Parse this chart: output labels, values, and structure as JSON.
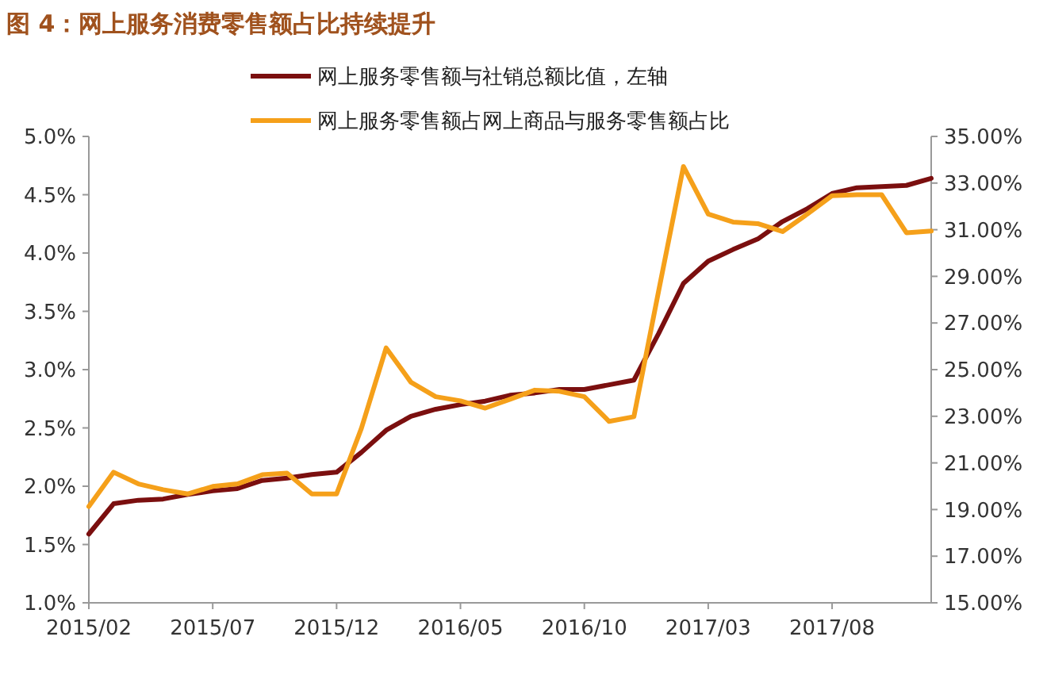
{
  "chart_data": {
    "type": "line",
    "title": "图 4：网上服务消费零售额占比持续提升",
    "categories": [
      "2015/02",
      null,
      null,
      null,
      null,
      "2015/07",
      null,
      null,
      null,
      null,
      "2015/12",
      null,
      null,
      null,
      null,
      "2016/05",
      null,
      null,
      null,
      null,
      "2016/10",
      null,
      null,
      null,
      null,
      "2017/03",
      null,
      null,
      null,
      null,
      "2017/08",
      null,
      null,
      null,
      null
    ],
    "series": [
      {
        "name": "网上服务零售额与社销总额比值，左轴",
        "color": "#7b0f0f",
        "values": [
          1.59,
          1.85,
          1.88,
          1.89,
          1.93,
          1.96,
          1.98,
          2.05,
          2.07,
          2.1,
          2.12,
          2.29,
          2.48,
          2.6,
          2.66,
          2.7,
          2.73,
          2.78,
          2.8,
          2.83,
          2.83,
          2.87,
          2.91,
          3.31,
          3.74,
          3.93,
          4.03,
          4.12,
          4.27,
          4.38,
          4.51,
          4.56,
          4.57,
          4.58,
          4.64
        ]
      },
      {
        "name": "网上服务零售额占网上商品与服务零售额占比",
        "color": "#f5a01a",
        "axis": "y2",
        "values": [
          19.13,
          20.6,
          20.1,
          19.85,
          19.67,
          19.99,
          20.1,
          20.49,
          20.56,
          19.67,
          19.67,
          22.48,
          25.93,
          24.46,
          23.84,
          23.66,
          23.35,
          23.73,
          24.12,
          24.07,
          23.84,
          22.78,
          22.98,
          28.38,
          33.71,
          31.67,
          31.33,
          31.26,
          30.92,
          31.67,
          32.46,
          32.5,
          32.5,
          30.87,
          30.94
        ]
      }
    ],
    "ylim": [
      1.0,
      5.0
    ],
    "yticks": [
      {
        "value": 1.0,
        "label": "1.0%"
      },
      {
        "value": 1.5,
        "label": "1.5%"
      },
      {
        "value": 2.0,
        "label": "2.0%"
      },
      {
        "value": 2.5,
        "label": "2.5%"
      },
      {
        "value": 3.0,
        "label": "3.0%"
      },
      {
        "value": 3.5,
        "label": "3.5%"
      },
      {
        "value": 4.0,
        "label": "4.0%"
      },
      {
        "value": 4.5,
        "label": "4.5%"
      },
      {
        "value": 5.0,
        "label": "5.0%"
      }
    ],
    "y2lim": [
      15,
      35
    ],
    "y2ticks": [
      {
        "value": 15,
        "label": "15.00%"
      },
      {
        "value": 17,
        "label": "17.00%"
      },
      {
        "value": 19,
        "label": "19.00%"
      },
      {
        "value": 21,
        "label": "21.00%"
      },
      {
        "value": 23,
        "label": "23.00%"
      },
      {
        "value": 25,
        "label": "25.00%"
      },
      {
        "value": 27,
        "label": "27.00%"
      },
      {
        "value": 29,
        "label": "29.00%"
      },
      {
        "value": 31,
        "label": "31.00%"
      },
      {
        "value": 33,
        "label": "33.00%"
      },
      {
        "value": 35,
        "label": "35.00%"
      }
    ],
    "legend": "top",
    "grid": false,
    "marker": "none",
    "line_style": "solid"
  }
}
